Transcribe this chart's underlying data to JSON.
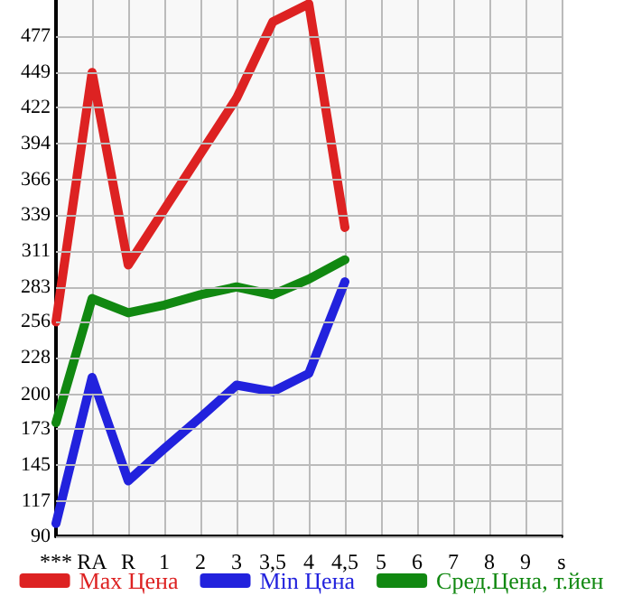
{
  "chart_data": {
    "type": "line",
    "categories": [
      "***",
      "RA",
      "R",
      "1",
      "2",
      "3",
      "3,5",
      "4",
      "4,5",
      "5",
      "6",
      "7",
      "8",
      "9",
      "s"
    ],
    "series": [
      {
        "name": "Max Цена",
        "color": "#dd2222",
        "values": [
          256,
          449,
          300,
          343,
          386,
          429,
          488,
          502,
          329,
          null,
          null,
          null,
          null,
          null,
          null
        ]
      },
      {
        "name": "Min Цена",
        "color": "#2222dd",
        "values": [
          100,
          213,
          133,
          158,
          182,
          207,
          202,
          216,
          287,
          null,
          null,
          null,
          null,
          null,
          null
        ]
      },
      {
        "name": "Сред.Цена, т.йен",
        "color": "#118811",
        "values": [
          178,
          274,
          263,
          269,
          277,
          283,
          277,
          289,
          304,
          null,
          null,
          null,
          null,
          null,
          null
        ]
      }
    ],
    "ylim": [
      90,
      505
    ],
    "yticks": [
      90,
      117,
      145,
      173,
      200,
      228,
      256,
      283,
      311,
      339,
      366,
      394,
      422,
      449,
      477
    ],
    "grid": true,
    "legend": "bottom",
    "marker": "none",
    "line_style": "solid"
  }
}
